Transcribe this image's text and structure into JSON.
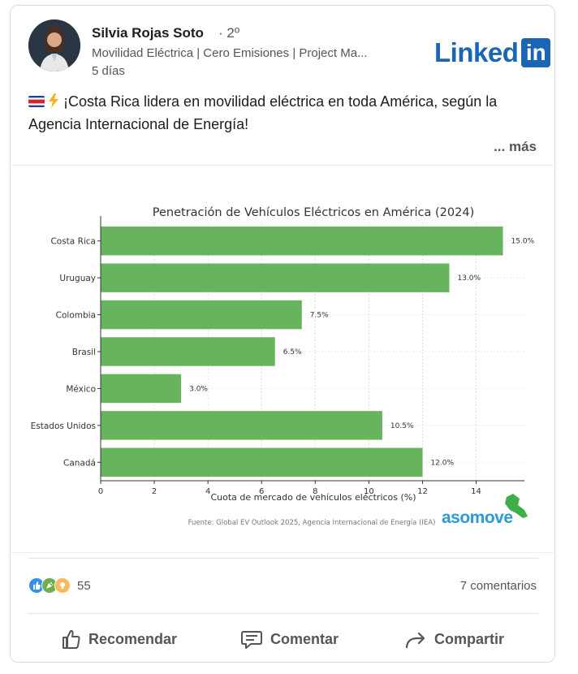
{
  "author": {
    "name": "Silvia Rojas Soto",
    "degree": "· 2º",
    "headline": "Movilidad Eléctrica | Cero Emisiones | Project Ma...",
    "post_age": "5 días"
  },
  "brand": {
    "word": "Linked",
    "box": "in",
    "color": "#1a66b5"
  },
  "post": {
    "text": "¡Costa Rica lidera en movilidad eléctrica en toda América, según la Agencia Internacional de Energía!",
    "see_more": "... más"
  },
  "chart_data": {
    "type": "bar",
    "orientation": "horizontal",
    "title": "Penetración de Vehículos Eléctricos en América (2024)",
    "categories": [
      "Costa Rica",
      "Uruguay",
      "Colombia",
      "Brasil",
      "México",
      "Estados Unidos",
      "Canadá"
    ],
    "values": [
      15.0,
      13.0,
      7.5,
      6.5,
      3.0,
      10.5,
      12.0
    ],
    "value_labels": [
      "15.0%",
      "13.0%",
      "7.5%",
      "6.5%",
      "3.0%",
      "10.5%",
      "12.0%"
    ],
    "xlabel": "Cuota de mercado de vehículos eléctricos (%)",
    "ylabel": "",
    "xlim": [
      0,
      15.8
    ],
    "xticks": [
      0,
      2,
      4,
      6,
      8,
      10,
      12,
      14
    ],
    "grid": true,
    "bar_color": "#67b35e",
    "source": "Fuente: Global EV Outlook 2025, Agencia Internacional de Energía (IEA)",
    "watermark": "asomove"
  },
  "engagement": {
    "reaction_count": "55",
    "comments": "7 comentarios"
  },
  "actions": {
    "like": "Recomendar",
    "comment": "Comentar",
    "share": "Compartir"
  }
}
